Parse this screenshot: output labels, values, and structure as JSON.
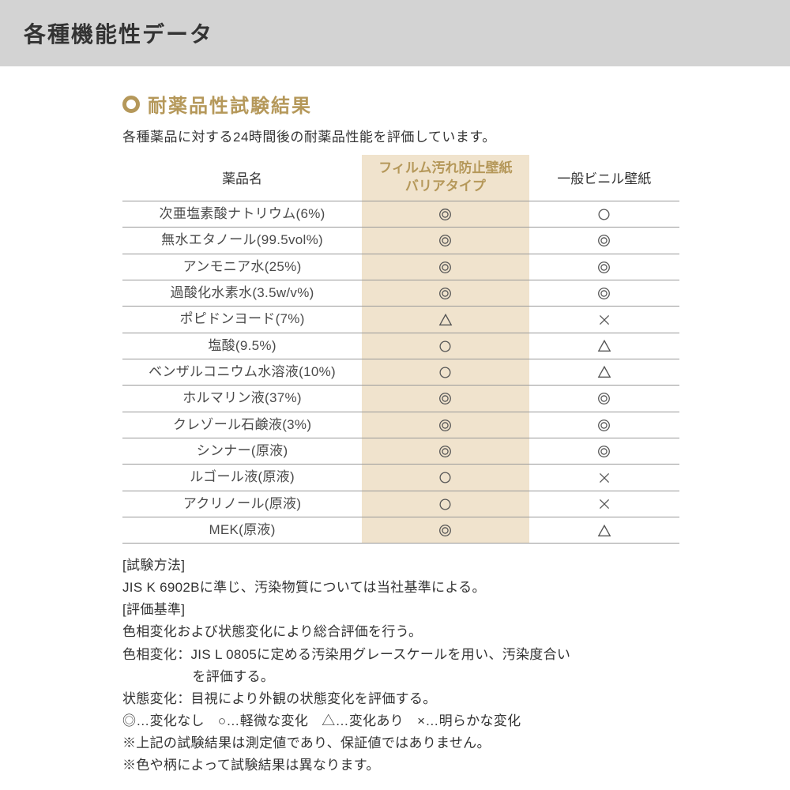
{
  "colors": {
    "header_bg": "#d3d3d3",
    "accent": "#b5985a",
    "film_col_bg": "#f0e3cd",
    "text": "#333333",
    "cell_text": "#4a4a4a",
    "row_border": "#999999",
    "symbol_stroke": "#555555"
  },
  "typography": {
    "page_title_size": 28,
    "section_title_size": 24,
    "body_size": 17
  },
  "page_title": "各種機能性データ",
  "section": {
    "title": "耐薬品性試験結果",
    "description": "各種薬品に対する24時間後の耐薬品性能を評価しています。"
  },
  "table": {
    "columns": {
      "name": "薬品名",
      "film": "フィルム汚れ防止壁紙\nバリアタイプ",
      "general": "一般ビニル壁紙"
    },
    "col_widths_pct": [
      43,
      30,
      27
    ],
    "rows": [
      {
        "name": "次亜塩素酸ナトリウム(6%)",
        "film": "double",
        "general": "single"
      },
      {
        "name": "無水エタノール(99.5vol%)",
        "film": "double",
        "general": "double"
      },
      {
        "name": "アンモニア水(25%)",
        "film": "double",
        "general": "double"
      },
      {
        "name": "過酸化水素水(3.5w/v%)",
        "film": "double",
        "general": "double"
      },
      {
        "name": "ポピドンヨード(7%)",
        "film": "triangle",
        "general": "cross"
      },
      {
        "name": "塩酸(9.5%)",
        "film": "single",
        "general": "triangle"
      },
      {
        "name": "ベンザルコニウム水溶液(10%)",
        "film": "single",
        "general": "triangle"
      },
      {
        "name": "ホルマリン液(37%)",
        "film": "double",
        "general": "double"
      },
      {
        "name": "クレゾール石鹸液(3%)",
        "film": "double",
        "general": "double"
      },
      {
        "name": "シンナー(原液)",
        "film": "double",
        "general": "double"
      },
      {
        "name": "ルゴール液(原液)",
        "film": "single",
        "general": "cross"
      },
      {
        "name": "アクリノール(原液)",
        "film": "single",
        "general": "cross"
      },
      {
        "name": "MEK(原液)",
        "film": "double",
        "general": "triangle"
      }
    ]
  },
  "notes": {
    "method_label": "[試験方法]",
    "method_text": "JIS K 6902Bに準じ、汚染物質については当社基準による。",
    "criteria_label": "[評価基準]",
    "criteria_text": "色相変化および状態変化により総合評価を行う。",
    "hue_line1": "色相変化：JIS L 0805に定める汚染用グレースケールを用い、汚染度合い",
    "hue_line2": "を評価する。",
    "state_line": "状態変化：目視により外観の状態変化を評価する。",
    "legend": {
      "double": "◎…変化なし",
      "single": "○…軽微な変化",
      "triangle": "△…変化あり",
      "cross": "×…明らかな変化"
    },
    "disclaimer1": "※上記の試験結果は測定値であり、保証値ではありません。",
    "disclaimer2": "※色や柄によって試験結果は異なります。"
  }
}
